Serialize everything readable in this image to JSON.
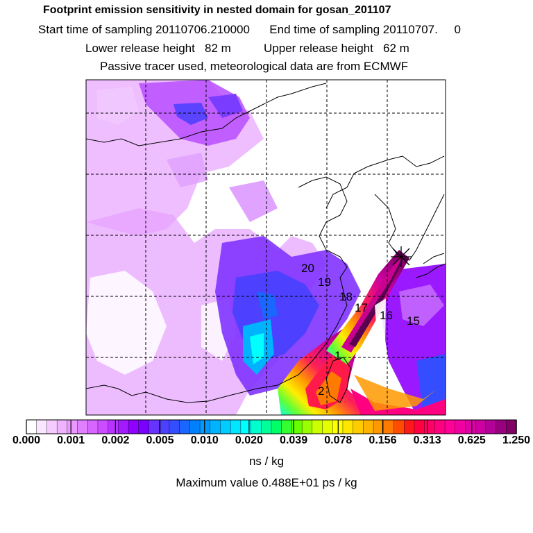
{
  "header": {
    "title": "Footprint emission sensitivity in nested domain for gosan_201107",
    "line2": "Start time of sampling 20110706.210000      End time of sampling 20110707.     0",
    "line3": "Lower release height   82 m          Upper release height   62 m",
    "line4": "Passive tracer used, meteorological data are from ECMWF"
  },
  "colorbar": {
    "tick_labels": [
      "0.000",
      "0.001",
      "0.002",
      "0.005",
      "0.010",
      "0.020",
      "0.039",
      "0.078",
      "0.156",
      "0.313",
      "0.625",
      "1.250"
    ],
    "colors": [
      "#ffffff",
      "#fbe6ff",
      "#f6ccff",
      "#f0b3ff",
      "#e999ff",
      "#e080ff",
      "#d666ff",
      "#cc4dff",
      "#b833ff",
      "#a31aff",
      "#8f00ff",
      "#7a00ff",
      "#6633ff",
      "#4d40ff",
      "#334dff",
      "#1a66ff",
      "#0080ff",
      "#0099ff",
      "#00b3ff",
      "#00ccff",
      "#00e6ff",
      "#00ffff",
      "#00ffcc",
      "#00ff99",
      "#00ff66",
      "#33ff33",
      "#66ff00",
      "#99ff00",
      "#ccff00",
      "#e6ff00",
      "#ffff00",
      "#ffe600",
      "#ffcc00",
      "#ffb300",
      "#ff9900",
      "#ff7a00",
      "#ff4d00",
      "#ff1a1a",
      "#ff0040",
      "#ff0066",
      "#ff0080",
      "#ff0099",
      "#f000a0",
      "#e000a8",
      "#cc00a0",
      "#b30099",
      "#990080",
      "#800066"
    ],
    "unit_label": "ns / kg",
    "max_label": "Maximum value  0.488E+01 ps / kg"
  },
  "map": {
    "trajectory_labels": [
      "20",
      "19",
      "18",
      "17",
      "16",
      "15",
      "1",
      "2"
    ],
    "release_marker": "release-point-star"
  }
}
